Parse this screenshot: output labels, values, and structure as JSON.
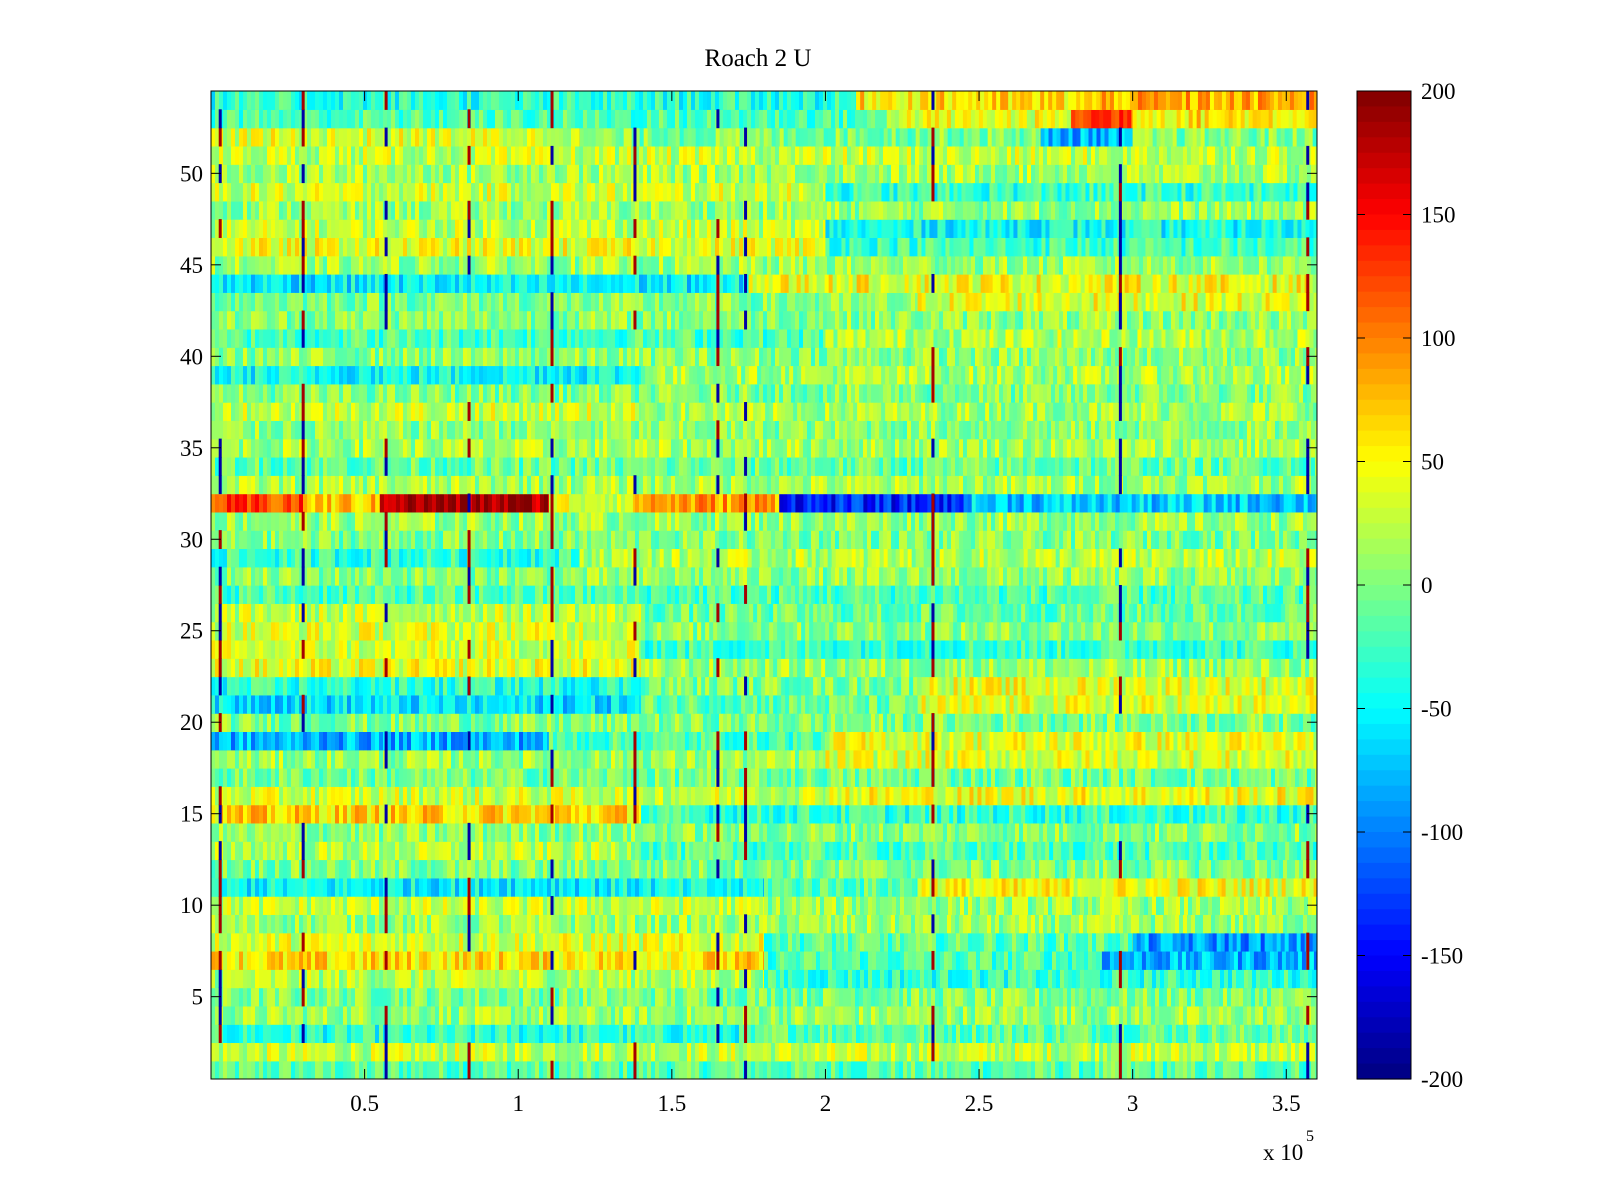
{
  "chart_data": {
    "type": "heatmap",
    "title": "Roach 2 U",
    "xlabel": "",
    "ylabel": "",
    "x_exponent_label": "x 10",
    "x_exponent_power": "5",
    "xlim": [
      0,
      3.6
    ],
    "ylim": [
      0.5,
      54.5
    ],
    "xticks": [
      0.5,
      1,
      1.5,
      2,
      2.5,
      3,
      3.5
    ],
    "xtick_labels": [
      "0.5",
      "1",
      "1.5",
      "2",
      "2.5",
      "3",
      "3.5"
    ],
    "yticks": [
      5,
      10,
      15,
      20,
      25,
      30,
      35,
      40,
      45,
      50
    ],
    "ytick_labels": [
      "5",
      "10",
      "15",
      "20",
      "25",
      "30",
      "35",
      "40",
      "45",
      "50"
    ],
    "rows": 54,
    "colormap": "jet",
    "colorbar": {
      "min": -200,
      "max": 200,
      "ticks": [
        -200,
        -150,
        -100,
        -50,
        0,
        50,
        100,
        150,
        200
      ],
      "tick_labels": [
        "-200",
        "-150",
        "-100",
        "-50",
        "0",
        "50",
        "100",
        "150",
        "200"
      ]
    },
    "spike_columns_x": [
      0.03,
      0.3,
      0.57,
      0.84,
      1.11,
      1.38,
      1.65,
      1.74,
      2.35,
      2.96,
      3.57
    ],
    "row_segments": [
      {
        "row": 1,
        "from": 0,
        "to": 3.6,
        "value": -15
      },
      {
        "row": 2,
        "from": 0,
        "to": 3.6,
        "value": 25
      },
      {
        "row": 3,
        "from": 0,
        "to": 1.8,
        "value": -35
      },
      {
        "row": 3,
        "from": 1.8,
        "to": 3.6,
        "value": -10
      },
      {
        "row": 4,
        "from": 0,
        "to": 3.6,
        "value": 10
      },
      {
        "row": 5,
        "from": 0,
        "to": 3.6,
        "value": 0
      },
      {
        "row": 6,
        "from": 0,
        "to": 1.8,
        "value": 20
      },
      {
        "row": 6,
        "from": 1.8,
        "to": 3.6,
        "value": -30
      },
      {
        "row": 7,
        "from": 0,
        "to": 1.8,
        "value": 60
      },
      {
        "row": 7,
        "from": 1.8,
        "to": 2.9,
        "value": -20
      },
      {
        "row": 7,
        "from": 2.9,
        "to": 3.6,
        "value": -80
      },
      {
        "row": 8,
        "from": 0,
        "to": 1.8,
        "value": 35
      },
      {
        "row": 8,
        "from": 1.8,
        "to": 3.0,
        "value": -15
      },
      {
        "row": 8,
        "from": 3.0,
        "to": 3.6,
        "value": -90
      },
      {
        "row": 9,
        "from": 0,
        "to": 3.6,
        "value": 10
      },
      {
        "row": 10,
        "from": 0,
        "to": 1.8,
        "value": 25
      },
      {
        "row": 10,
        "from": 1.8,
        "to": 3.6,
        "value": 10
      },
      {
        "row": 11,
        "from": 0,
        "to": 1.8,
        "value": -50
      },
      {
        "row": 11,
        "from": 1.8,
        "to": 2.3,
        "value": -15
      },
      {
        "row": 11,
        "from": 2.3,
        "to": 3.6,
        "value": 45
      },
      {
        "row": 12,
        "from": 0,
        "to": 3.6,
        "value": 0
      },
      {
        "row": 13,
        "from": 0,
        "to": 1.4,
        "value": 20
      },
      {
        "row": 13,
        "from": 1.4,
        "to": 3.6,
        "value": -20
      },
      {
        "row": 14,
        "from": 0,
        "to": 3.6,
        "value": 5
      },
      {
        "row": 15,
        "from": 0,
        "to": 1.4,
        "value": 65
      },
      {
        "row": 15,
        "from": 1.4,
        "to": 3.6,
        "value": -30
      },
      {
        "row": 16,
        "from": 0,
        "to": 2.0,
        "value": 30
      },
      {
        "row": 16,
        "from": 2.0,
        "to": 3.6,
        "value": 45
      },
      {
        "row": 17,
        "from": 0,
        "to": 3.6,
        "value": -5
      },
      {
        "row": 18,
        "from": 0,
        "to": 2.0,
        "value": 10
      },
      {
        "row": 18,
        "from": 2.0,
        "to": 3.6,
        "value": 35
      },
      {
        "row": 19,
        "from": 0,
        "to": 1.1,
        "value": -80
      },
      {
        "row": 19,
        "from": 1.1,
        "to": 2.0,
        "value": -20
      },
      {
        "row": 19,
        "from": 2.0,
        "to": 3.6,
        "value": 40
      },
      {
        "row": 20,
        "from": 0,
        "to": 3.6,
        "value": 0
      },
      {
        "row": 21,
        "from": 0,
        "to": 1.4,
        "value": -60
      },
      {
        "row": 21,
        "from": 1.4,
        "to": 2.3,
        "value": -10
      },
      {
        "row": 21,
        "from": 2.3,
        "to": 3.6,
        "value": 35
      },
      {
        "row": 22,
        "from": 0,
        "to": 1.4,
        "value": -35
      },
      {
        "row": 22,
        "from": 1.4,
        "to": 2.3,
        "value": 0
      },
      {
        "row": 22,
        "from": 2.3,
        "to": 3.6,
        "value": 40
      },
      {
        "row": 23,
        "from": 0,
        "to": 1.4,
        "value": 40
      },
      {
        "row": 23,
        "from": 1.4,
        "to": 3.6,
        "value": 10
      },
      {
        "row": 24,
        "from": 0,
        "to": 1.4,
        "value": 30
      },
      {
        "row": 24,
        "from": 1.4,
        "to": 3.6,
        "value": -25
      },
      {
        "row": 25,
        "from": 0,
        "to": 1.4,
        "value": 35
      },
      {
        "row": 25,
        "from": 1.4,
        "to": 3.6,
        "value": 5
      },
      {
        "row": 26,
        "from": 0,
        "to": 1.4,
        "value": 25
      },
      {
        "row": 26,
        "from": 1.4,
        "to": 3.6,
        "value": -10
      },
      {
        "row": 27,
        "from": 0,
        "to": 3.6,
        "value": -20
      },
      {
        "row": 28,
        "from": 0,
        "to": 3.6,
        "value": 5
      },
      {
        "row": 29,
        "from": 0,
        "to": 1.2,
        "value": -30
      },
      {
        "row": 29,
        "from": 1.2,
        "to": 3.6,
        "value": 20
      },
      {
        "row": 30,
        "from": 0,
        "to": 3.6,
        "value": 0
      },
      {
        "row": 31,
        "from": 0,
        "to": 3.6,
        "value": 10
      },
      {
        "row": 32,
        "from": 0,
        "to": 0.3,
        "value": 120
      },
      {
        "row": 32,
        "from": 0.3,
        "to": 0.55,
        "value": 70
      },
      {
        "row": 32,
        "from": 0.55,
        "to": 1.1,
        "value": 185
      },
      {
        "row": 32,
        "from": 1.1,
        "to": 1.38,
        "value": 40
      },
      {
        "row": 32,
        "from": 1.38,
        "to": 1.85,
        "value": 90
      },
      {
        "row": 32,
        "from": 1.85,
        "to": 2.45,
        "value": -140
      },
      {
        "row": 32,
        "from": 2.45,
        "to": 3.6,
        "value": -70
      },
      {
        "row": 33,
        "from": 0,
        "to": 3.6,
        "value": 15
      },
      {
        "row": 34,
        "from": 0,
        "to": 3.6,
        "value": -10
      },
      {
        "row": 35,
        "from": 0,
        "to": 3.6,
        "value": 15
      },
      {
        "row": 36,
        "from": 0,
        "to": 3.6,
        "value": 5
      },
      {
        "row": 37,
        "from": 0,
        "to": 1.4,
        "value": 30
      },
      {
        "row": 37,
        "from": 1.4,
        "to": 3.6,
        "value": 15
      },
      {
        "row": 38,
        "from": 0,
        "to": 3.6,
        "value": 0
      },
      {
        "row": 39,
        "from": 0,
        "to": 1.4,
        "value": -45
      },
      {
        "row": 39,
        "from": 1.4,
        "to": 3.6,
        "value": 15
      },
      {
        "row": 40,
        "from": 0,
        "to": 3.6,
        "value": 5
      },
      {
        "row": 41,
        "from": 0,
        "to": 2.0,
        "value": -20
      },
      {
        "row": 41,
        "from": 2.0,
        "to": 3.6,
        "value": 20
      },
      {
        "row": 42,
        "from": 0,
        "to": 3.6,
        "value": 5
      },
      {
        "row": 43,
        "from": 0,
        "to": 2.3,
        "value": 0
      },
      {
        "row": 43,
        "from": 2.3,
        "to": 3.6,
        "value": 40
      },
      {
        "row": 44,
        "from": 0,
        "to": 1.75,
        "value": -55
      },
      {
        "row": 44,
        "from": 1.75,
        "to": 3.6,
        "value": 45
      },
      {
        "row": 45,
        "from": 0,
        "to": 3.6,
        "value": 10
      },
      {
        "row": 46,
        "from": 0,
        "to": 2.0,
        "value": 40
      },
      {
        "row": 46,
        "from": 2.0,
        "to": 3.6,
        "value": -25
      },
      {
        "row": 47,
        "from": 0,
        "to": 2.0,
        "value": 25
      },
      {
        "row": 47,
        "from": 2.0,
        "to": 3.6,
        "value": -45
      },
      {
        "row": 48,
        "from": 0,
        "to": 3.6,
        "value": 10
      },
      {
        "row": 49,
        "from": 0,
        "to": 2.0,
        "value": 30
      },
      {
        "row": 49,
        "from": 2.0,
        "to": 3.6,
        "value": -30
      },
      {
        "row": 50,
        "from": 0,
        "to": 3.6,
        "value": 15
      },
      {
        "row": 51,
        "from": 0,
        "to": 3.6,
        "value": 25
      },
      {
        "row": 52,
        "from": 0,
        "to": 1.2,
        "value": 35
      },
      {
        "row": 52,
        "from": 1.2,
        "to": 2.7,
        "value": 0
      },
      {
        "row": 52,
        "from": 2.7,
        "to": 3.0,
        "value": -80
      },
      {
        "row": 52,
        "from": 3.0,
        "to": 3.6,
        "value": 0
      },
      {
        "row": 53,
        "from": 0,
        "to": 2.2,
        "value": -20
      },
      {
        "row": 53,
        "from": 2.2,
        "to": 2.8,
        "value": 40
      },
      {
        "row": 53,
        "from": 2.8,
        "to": 3.0,
        "value": 130
      },
      {
        "row": 53,
        "from": 3.0,
        "to": 3.6,
        "value": 60
      },
      {
        "row": 54,
        "from": 0,
        "to": 2.1,
        "value": -35
      },
      {
        "row": 54,
        "from": 2.1,
        "to": 2.9,
        "value": 60
      },
      {
        "row": 54,
        "from": 2.9,
        "to": 3.6,
        "value": 80
      }
    ]
  }
}
